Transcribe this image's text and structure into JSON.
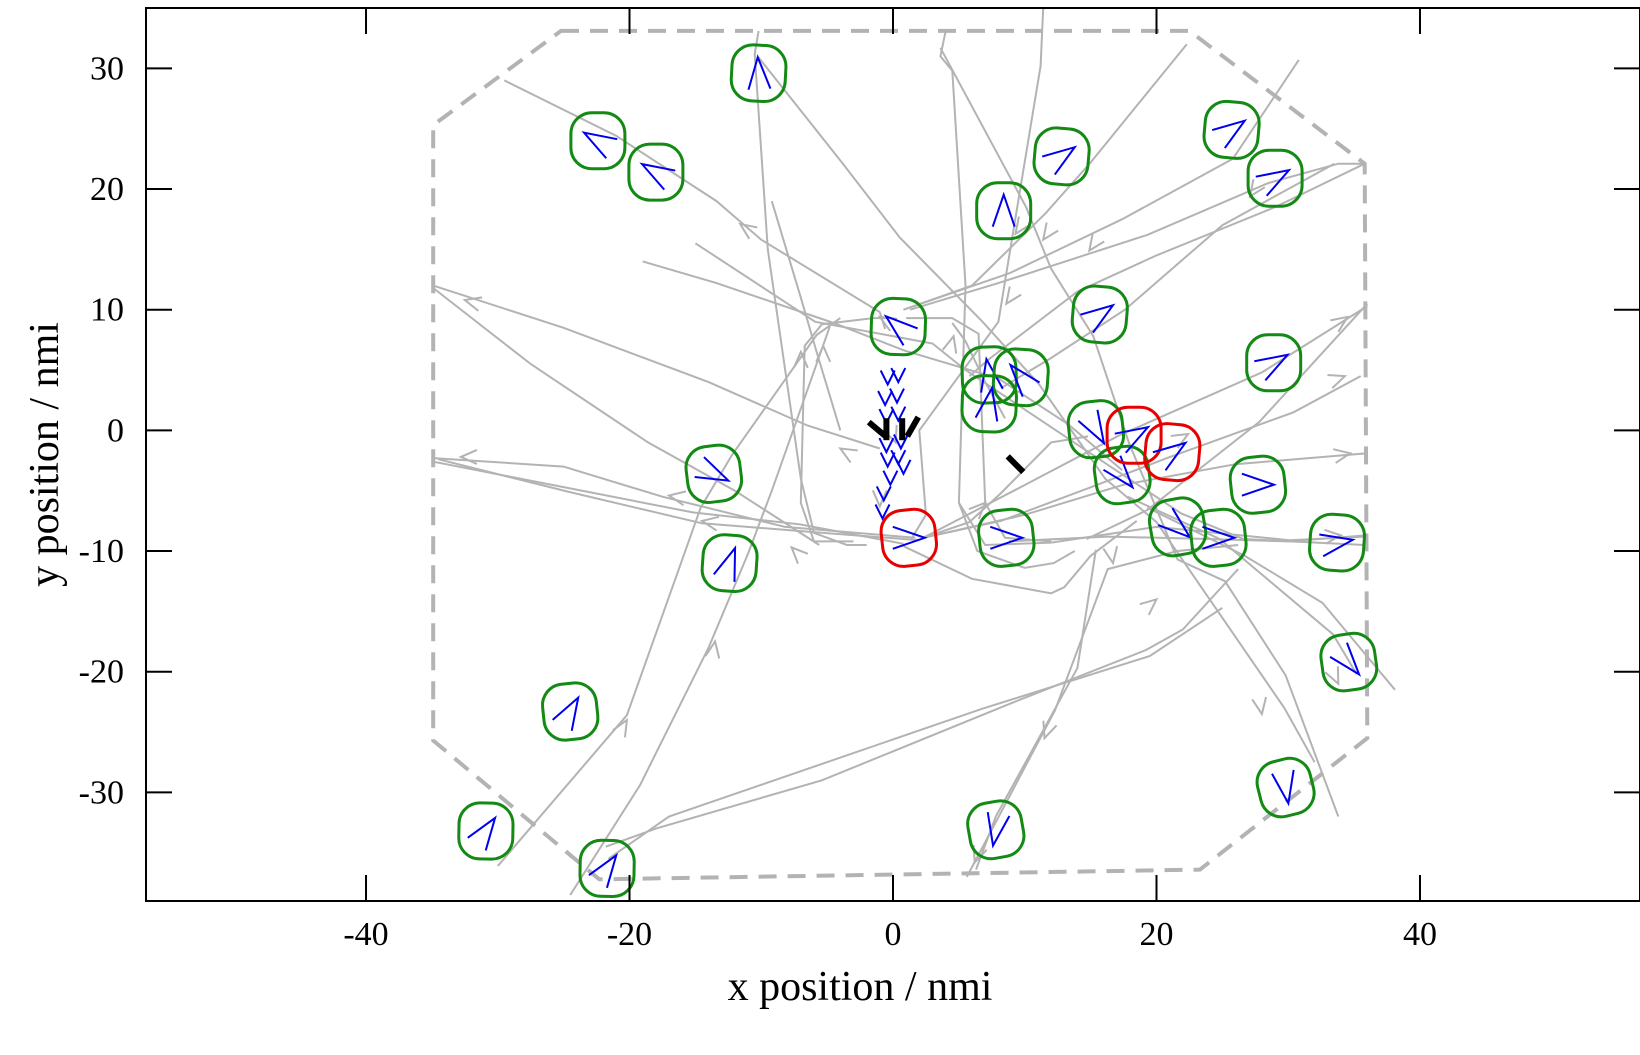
{
  "chart_data": {
    "type": "scatter",
    "xlabel": "x position / nmi",
    "ylabel": "y position / nmi",
    "xlim": [
      -56.7,
      56.7
    ],
    "ylim": [
      -39,
      35
    ],
    "xticks": [
      -40,
      -20,
      0,
      20,
      40
    ],
    "yticks": [
      -30,
      -20,
      -10,
      0,
      10,
      20,
      30
    ],
    "grid": false,
    "legend": "none",
    "colors": {
      "boundary": "#b3b3b3",
      "track": "#b3b3b3",
      "aircraft_ok": "#138a13",
      "aircraft_conflict": "#e80000",
      "heading": "#0000ee",
      "vertiport": "#000000"
    },
    "boundary": [
      [
        -25.2,
        33.1
      ],
      [
        22.5,
        33.1
      ],
      [
        35.8,
        22.1
      ],
      [
        36.0,
        -25.5
      ],
      [
        23.3,
        -36.4
      ],
      [
        -22.3,
        -37.2
      ],
      [
        -34.9,
        -25.7
      ],
      [
        -34.9,
        25.3
      ]
    ],
    "tracks": [
      [
        [
          -29.5,
          29.0
        ],
        [
          -21.0,
          24.4
        ],
        [
          -13.4,
          19.0
        ],
        [
          -10.0,
          15.8
        ],
        [
          -1.0,
          9.8
        ],
        [
          -0.6,
          8.4
        ]
      ],
      [
        [
          -0.5,
          9.3
        ],
        [
          -1.5,
          9.3
        ],
        [
          -5.4,
          8.8
        ],
        [
          -6.7,
          7.0
        ],
        [
          -7.0,
          -6.0
        ],
        [
          -6.0,
          -9.2
        ],
        [
          -3.0,
          -9.2
        ]
      ],
      [
        [
          1.0,
          9.3
        ],
        [
          4.5,
          9.3
        ],
        [
          6.5,
          8.0
        ],
        [
          7.0,
          -6.0
        ],
        [
          8.5,
          -8.9
        ],
        [
          12.0,
          -9.2
        ]
      ],
      [
        [
          11.4,
          35.0
        ],
        [
          11.2,
          30.2
        ],
        [
          8.6,
          13.0
        ],
        [
          8.0,
          9.0
        ],
        [
          2.0,
          0.0
        ],
        [
          2.5,
          -7.0
        ],
        [
          1.4,
          -9.0
        ]
      ],
      [
        [
          4.0,
          33.1
        ],
        [
          3.6,
          31.0
        ],
        [
          4.5,
          29.8
        ],
        [
          5.5,
          12.0
        ],
        [
          5.0,
          -6.0
        ],
        [
          7.0,
          -9.5
        ],
        [
          12.0,
          -9.3
        ]
      ],
      [
        [
          -10.2,
          33.1
        ],
        [
          -10.5,
          31.2
        ],
        [
          -9.5,
          15.0
        ],
        [
          -7.0,
          -4.0
        ],
        [
          -6.0,
          -8.5
        ],
        [
          -3.5,
          -9.5
        ],
        [
          -2.0,
          -9.5
        ]
      ],
      [
        [
          -10.2,
          30.9
        ],
        [
          -3.8,
          22.1
        ],
        [
          0.5,
          16.0
        ],
        [
          6.8,
          9.0
        ],
        [
          11.1,
          3.8
        ],
        [
          16.1,
          -4.0
        ],
        [
          20.0,
          -7.6
        ],
        [
          29.7,
          -23.0
        ],
        [
          32.0,
          -27.5
        ]
      ],
      [
        [
          3.6,
          31.7
        ],
        [
          10.1,
          18.5
        ],
        [
          12.0,
          13.4
        ],
        [
          15.2,
          7.8
        ],
        [
          17.9,
          -1.0
        ],
        [
          21.6,
          -10.7
        ],
        [
          25.2,
          -12.5
        ],
        [
          29.8,
          -20.3
        ],
        [
          33.8,
          -32.0
        ]
      ],
      [
        [
          -15.0,
          15.5
        ],
        [
          -5.9,
          9.0
        ],
        [
          3.0,
          7.2
        ],
        [
          5.5,
          5.0
        ],
        [
          14.3,
          -1.4
        ],
        [
          21.9,
          -6.9
        ],
        [
          26.6,
          -9.0
        ],
        [
          35.8,
          -9.5
        ]
      ],
      [
        [
          -19.0,
          14.0
        ],
        [
          -13.4,
          12.2
        ],
        [
          -4.5,
          8.9
        ],
        [
          0.9,
          6.6
        ],
        [
          8.0,
          4.3
        ],
        [
          13.3,
          0.5
        ],
        [
          17.4,
          -3.3
        ]
      ],
      [
        [
          0.8,
          10.0
        ],
        [
          6.0,
          12.0
        ],
        [
          11.6,
          18.0
        ],
        [
          15.0,
          22.2
        ],
        [
          22.3,
          32.0
        ]
      ],
      [
        [
          0.8,
          10.0
        ],
        [
          8.8,
          13.0
        ],
        [
          17.4,
          17.5
        ],
        [
          25.8,
          22.5
        ],
        [
          30.8,
          30.7
        ]
      ],
      [
        [
          1.3,
          10.0
        ],
        [
          8.0,
          12.2
        ],
        [
          19.3,
          16.2
        ],
        [
          28.5,
          20.5
        ],
        [
          33.8,
          22.1
        ],
        [
          35.8,
          22.1
        ]
      ],
      [
        [
          35.8,
          22.1
        ],
        [
          29.0,
          18.5
        ],
        [
          20.0,
          14.5
        ],
        [
          14.0,
          11.5
        ],
        [
          7.4,
          6.0
        ],
        [
          5.8,
          4.5
        ]
      ],
      [
        [
          33.5,
          22.1
        ],
        [
          25.0,
          17.0
        ],
        [
          17.6,
          10.0
        ],
        [
          12.0,
          6.0
        ],
        [
          8.2,
          3.5
        ]
      ],
      [
        [
          -34.9,
          12.0
        ],
        [
          -25.0,
          8.5
        ],
        [
          -14.0,
          4.0
        ],
        [
          -6.5,
          0.4
        ],
        [
          -1.0,
          -1.5
        ]
      ],
      [
        [
          -34.9,
          11.8
        ],
        [
          -27.5,
          5.5
        ],
        [
          -18.6,
          -1.0
        ],
        [
          -12.0,
          -5.0
        ],
        [
          -5.6,
          -9.5
        ]
      ],
      [
        [
          -34.9,
          -2.3
        ],
        [
          -25.0,
          -3.0
        ],
        [
          -17.5,
          -5.5
        ],
        [
          -8.2,
          -8.0
        ],
        [
          1.7,
          -8.9
        ]
      ],
      [
        [
          -34.9,
          -2.6
        ],
        [
          -25.0,
          -4.7
        ],
        [
          -15.2,
          -6.8
        ],
        [
          -7.0,
          -7.8
        ],
        [
          0.8,
          -9.4
        ]
      ],
      [
        [
          -34.5,
          -2.4
        ],
        [
          -24.6,
          -5.1
        ],
        [
          -14.5,
          -7.7
        ],
        [
          -5.3,
          -8.5
        ],
        [
          2.0,
          -9.1
        ]
      ],
      [
        [
          -30.0,
          -36.1
        ],
        [
          -20.2,
          -23.6
        ],
        [
          -14.6,
          -6.4
        ],
        [
          -12.2,
          -2.0
        ],
        [
          -5.8,
          7.9
        ],
        [
          -4.0,
          9.3
        ]
      ],
      [
        [
          -24.5,
          -38.5
        ],
        [
          -19.2,
          -29.4
        ],
        [
          -14.0,
          -18.0
        ],
        [
          -11.0,
          -10.2
        ],
        [
          -9.2,
          -5.0
        ],
        [
          -4.8,
          8.6
        ]
      ],
      [
        [
          -21.8,
          -34.5
        ],
        [
          -18.0,
          -33.0
        ],
        [
          -5.4,
          -29.0
        ],
        [
          9.0,
          -22.6
        ],
        [
          19.2,
          -18.2
        ],
        [
          22.0,
          -16.5
        ],
        [
          26.2,
          -11.5
        ]
      ],
      [
        [
          -21.6,
          -35.5
        ],
        [
          -17.0,
          -32.0
        ],
        [
          6.7,
          -23.1
        ],
        [
          19.5,
          -18.7
        ],
        [
          25.0,
          -14.7
        ]
      ],
      [
        [
          26.2,
          -9.5
        ],
        [
          21.6,
          -10.0
        ],
        [
          16.3,
          -11.5
        ],
        [
          12.3,
          -23.2
        ],
        [
          5.6,
          -37.0
        ]
      ],
      [
        [
          15.4,
          -9.9
        ],
        [
          14.0,
          -19.7
        ],
        [
          7.8,
          -32.0
        ],
        [
          6.3,
          -36.4
        ]
      ],
      [
        [
          2.3,
          -8.9
        ],
        [
          8.2,
          -7.5
        ],
        [
          14.8,
          -4.8
        ],
        [
          20.8,
          -2.3
        ],
        [
          30.4,
          1.5
        ],
        [
          35.5,
          4.5
        ]
      ],
      [
        [
          2.3,
          -8.9
        ],
        [
          10.0,
          -7.0
        ],
        [
          17.5,
          -4.5
        ],
        [
          26.0,
          -2.8
        ],
        [
          36.0,
          -1.9
        ]
      ],
      [
        [
          2.3,
          -8.9
        ],
        [
          10.4,
          -4.3
        ],
        [
          17.2,
          -0.4
        ],
        [
          28.0,
          4.8
        ],
        [
          36.0,
          10.3
        ]
      ],
      [
        [
          14.7,
          -9.0
        ],
        [
          19.3,
          -6.6
        ],
        [
          27.8,
          0.7
        ],
        [
          36.0,
          10.5
        ]
      ],
      [
        [
          8.8,
          -9.2
        ],
        [
          16.3,
          -8.8
        ],
        [
          24.0,
          -9.0
        ],
        [
          30.0,
          -9.2
        ],
        [
          35.9,
          -8.7
        ]
      ],
      [
        [
          12.0,
          -9.3
        ],
        [
          20.0,
          -8.0
        ],
        [
          30.1,
          -9.1
        ],
        [
          35.8,
          -8.8
        ]
      ],
      [
        [
          19.3,
          -6.4
        ],
        [
          26.7,
          -10.4
        ],
        [
          32.6,
          -14.3
        ],
        [
          38.1,
          -21.5
        ]
      ],
      [
        [
          17.8,
          -5.5
        ],
        [
          24.8,
          -9.0
        ],
        [
          33.4,
          -16.9
        ],
        [
          35.2,
          -20.2
        ]
      ],
      [
        [
          -9.2,
          19.0
        ],
        [
          -7.0,
          11.0
        ],
        [
          -5.8,
          6.5
        ],
        [
          -4.0,
          0.0
        ]
      ],
      [
        [
          4.5,
          8.9
        ],
        [
          5.5,
          7.4
        ],
        [
          7.0,
          4.0
        ],
        [
          8.5,
          1.0
        ]
      ],
      [
        [
          2.3,
          -8.9
        ],
        [
          5.8,
          -7.6
        ],
        [
          8.2,
          -5.2
        ],
        [
          12.0,
          -1.0
        ],
        [
          14.8,
          -0.5
        ]
      ],
      [
        [
          18.5,
          -7.5
        ],
        [
          15.0,
          -10.4
        ],
        [
          13.0,
          -13.0
        ],
        [
          12.0,
          -13.5
        ],
        [
          6.0,
          -12.3
        ],
        [
          0.8,
          -9.6
        ]
      ],
      [
        [
          5.0,
          -6.0
        ],
        [
          6.4,
          -10.0
        ],
        [
          10.0,
          -11.4
        ],
        [
          12.2,
          -11.0
        ],
        [
          13.8,
          -10.0
        ]
      ]
    ],
    "track_arrows": [
      [
        -11.6,
        17.1,
        145
      ],
      [
        -1.0,
        9.4,
        150
      ],
      [
        -7.0,
        6.5,
        90
      ],
      [
        9.3,
        16.3,
        -125
      ],
      [
        11.4,
        15.8,
        -125
      ],
      [
        14.9,
        14.9,
        -125
      ],
      [
        27.1,
        19.4,
        -125
      ],
      [
        8.6,
        10.5,
        -125
      ],
      [
        -32.5,
        10.8,
        165
      ],
      [
        -32.8,
        -2.2,
        180
      ],
      [
        -14.5,
        -7.5,
        170
      ],
      [
        -17.0,
        -5.4,
        170
      ],
      [
        -20.2,
        -24.0,
        60
      ],
      [
        -13.5,
        -17.5,
        80
      ],
      [
        -5.3,
        7.0,
        90
      ],
      [
        20.0,
        -14.0,
        40
      ],
      [
        16.7,
        -11.0,
        -80
      ],
      [
        11.5,
        -25.5,
        -110
      ],
      [
        6.2,
        -35.8,
        -110
      ],
      [
        33.8,
        -21.0,
        -65
      ],
      [
        28.0,
        -23.5,
        -80
      ],
      [
        34.3,
        4.5,
        20
      ],
      [
        34.5,
        9.4,
        35
      ],
      [
        34.7,
        -1.9,
        10
      ],
      [
        34.0,
        -8.7,
        5
      ],
      [
        22.4,
        -0.3,
        30
      ],
      [
        -1.0,
        -6.3,
        -90
      ],
      [
        -4.0,
        -1.5,
        150
      ],
      [
        4.6,
        7.8,
        75
      ],
      [
        7.0,
        -6.0,
        45
      ],
      [
        -7.7,
        -9.7,
        135
      ],
      [
        0.2,
        -1.0,
        -70
      ]
    ],
    "aircraft": [
      {
        "x": -10.2,
        "y": 29.6,
        "heading": 93,
        "status": "ok"
      },
      {
        "x": -22.4,
        "y": 24.0,
        "heading": 150,
        "status": "ok"
      },
      {
        "x": -18.0,
        "y": 21.4,
        "heading": 150,
        "status": "ok"
      },
      {
        "x": 0.4,
        "y": 8.6,
        "heading": 140,
        "status": "ok"
      },
      {
        "x": 8.4,
        "y": 18.2,
        "heading": 90,
        "status": "ok"
      },
      {
        "x": 12.8,
        "y": 22.7,
        "heading": 35,
        "status": "ok"
      },
      {
        "x": 25.7,
        "y": 24.9,
        "heading": 35,
        "status": "ok"
      },
      {
        "x": 29.0,
        "y": 20.9,
        "heading": 30,
        "status": "ok"
      },
      {
        "x": 15.7,
        "y": 9.6,
        "heading": 35,
        "status": "ok"
      },
      {
        "x": 28.9,
        "y": 5.6,
        "heading": 30,
        "status": "ok"
      },
      {
        "x": 7.3,
        "y": 4.6,
        "heading": 100,
        "status": "ok"
      },
      {
        "x": 9.7,
        "y": 4.4,
        "heading": 130,
        "status": "ok"
      },
      {
        "x": 7.3,
        "y": 2.2,
        "heading": 80,
        "status": "ok"
      },
      {
        "x": 15.4,
        "y": 0.1,
        "heading": -60,
        "status": "ok"
      },
      {
        "x": 17.4,
        "y": -3.7,
        "heading": -50,
        "status": "ok"
      },
      {
        "x": 18.3,
        "y": -0.4,
        "heading": 30,
        "status": "conflict"
      },
      {
        "x": 21.2,
        "y": -1.8,
        "heading": 35,
        "status": "conflict"
      },
      {
        "x": 27.7,
        "y": -4.5,
        "heading": 0,
        "status": "ok"
      },
      {
        "x": -13.6,
        "y": -3.6,
        "heading": -25,
        "status": "ok"
      },
      {
        "x": -12.4,
        "y": -11.0,
        "heading": 70,
        "status": "ok"
      },
      {
        "x": 1.2,
        "y": -8.9,
        "heading": 0,
        "status": "conflict"
      },
      {
        "x": 8.6,
        "y": -8.9,
        "heading": 0,
        "status": "ok"
      },
      {
        "x": 21.6,
        "y": -8.0,
        "heading": -40,
        "status": "ok"
      },
      {
        "x": 24.7,
        "y": -8.9,
        "heading": 0,
        "status": "ok"
      },
      {
        "x": 33.7,
        "y": -9.3,
        "heading": 10,
        "status": "ok"
      },
      {
        "x": 34.6,
        "y": -19.2,
        "heading": -50,
        "status": "ok"
      },
      {
        "x": -24.5,
        "y": -23.3,
        "heading": 60,
        "status": "ok"
      },
      {
        "x": -30.9,
        "y": -33.2,
        "heading": 55,
        "status": "ok"
      },
      {
        "x": -21.7,
        "y": -36.3,
        "heading": 55,
        "status": "ok"
      },
      {
        "x": 7.8,
        "y": -33.1,
        "heading": -100,
        "status": "ok"
      },
      {
        "x": 29.8,
        "y": -29.6,
        "heading": -80,
        "status": "ok"
      }
    ],
    "queue_chevrons": [
      [
        -0.4,
        3.8,
        -90
      ],
      [
        0.4,
        4.0,
        -90
      ],
      [
        -0.6,
        2.1,
        -90
      ],
      [
        0.3,
        2.3,
        -90
      ],
      [
        -0.5,
        0.6,
        -90
      ],
      [
        0.4,
        0.8,
        -90
      ],
      [
        -0.5,
        -1.8,
        -90
      ],
      [
        0.6,
        -1.5,
        -90
      ],
      [
        -0.4,
        -3.0,
        -90
      ],
      [
        0.4,
        -2.8,
        -90
      ],
      [
        -0.7,
        -5.8,
        -90
      ],
      [
        -0.8,
        -7.3,
        -90
      ],
      [
        -0.2,
        -4.5,
        -90
      ],
      [
        0.8,
        -3.6,
        -90
      ]
    ],
    "vertiports": [
      [
        -1.2,
        0.1,
        -40
      ],
      [
        -0.5,
        0.1,
        90
      ],
      [
        0.7,
        0.1,
        90
      ],
      [
        1.5,
        0.3,
        60
      ],
      [
        9.3,
        -2.8,
        -45
      ]
    ]
  }
}
